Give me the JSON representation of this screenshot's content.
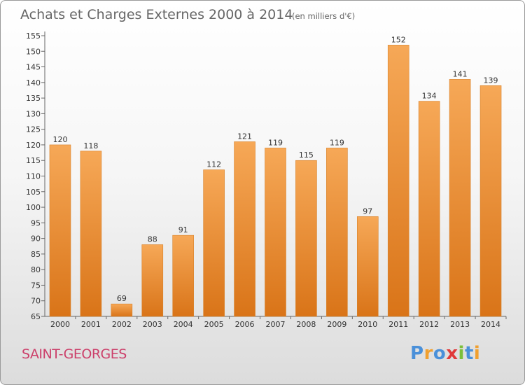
{
  "chart_data": {
    "type": "bar",
    "title": "Achats et Charges Externes 2000 à 2014",
    "subtitle": "(en milliers d'€)",
    "categories": [
      "2000",
      "2001",
      "2002",
      "2003",
      "2004",
      "2005",
      "2006",
      "2007",
      "2008",
      "2009",
      "2010",
      "2011",
      "2012",
      "2013",
      "2014"
    ],
    "values": [
      120,
      118,
      69,
      88,
      91,
      112,
      121,
      119,
      115,
      119,
      97,
      152,
      134,
      141,
      139
    ],
    "xlabel": "",
    "ylabel": "",
    "ylim": [
      65,
      155
    ],
    "yticks": [
      65,
      70,
      75,
      80,
      85,
      90,
      95,
      100,
      105,
      110,
      115,
      120,
      125,
      130,
      135,
      140,
      145,
      150,
      155
    ],
    "grid": false,
    "bar_color": "#ee8a2c"
  },
  "commune": "SAINT-GEORGES",
  "logo": {
    "letters": [
      "P",
      "r",
      "o",
      "x",
      "i",
      "t",
      "i"
    ],
    "colors": [
      "#4a90d9",
      "#f0a030",
      "#4a90d9",
      "#e03a3a",
      "#7cbf3a",
      "#4a90d9",
      "#f0a030"
    ]
  }
}
